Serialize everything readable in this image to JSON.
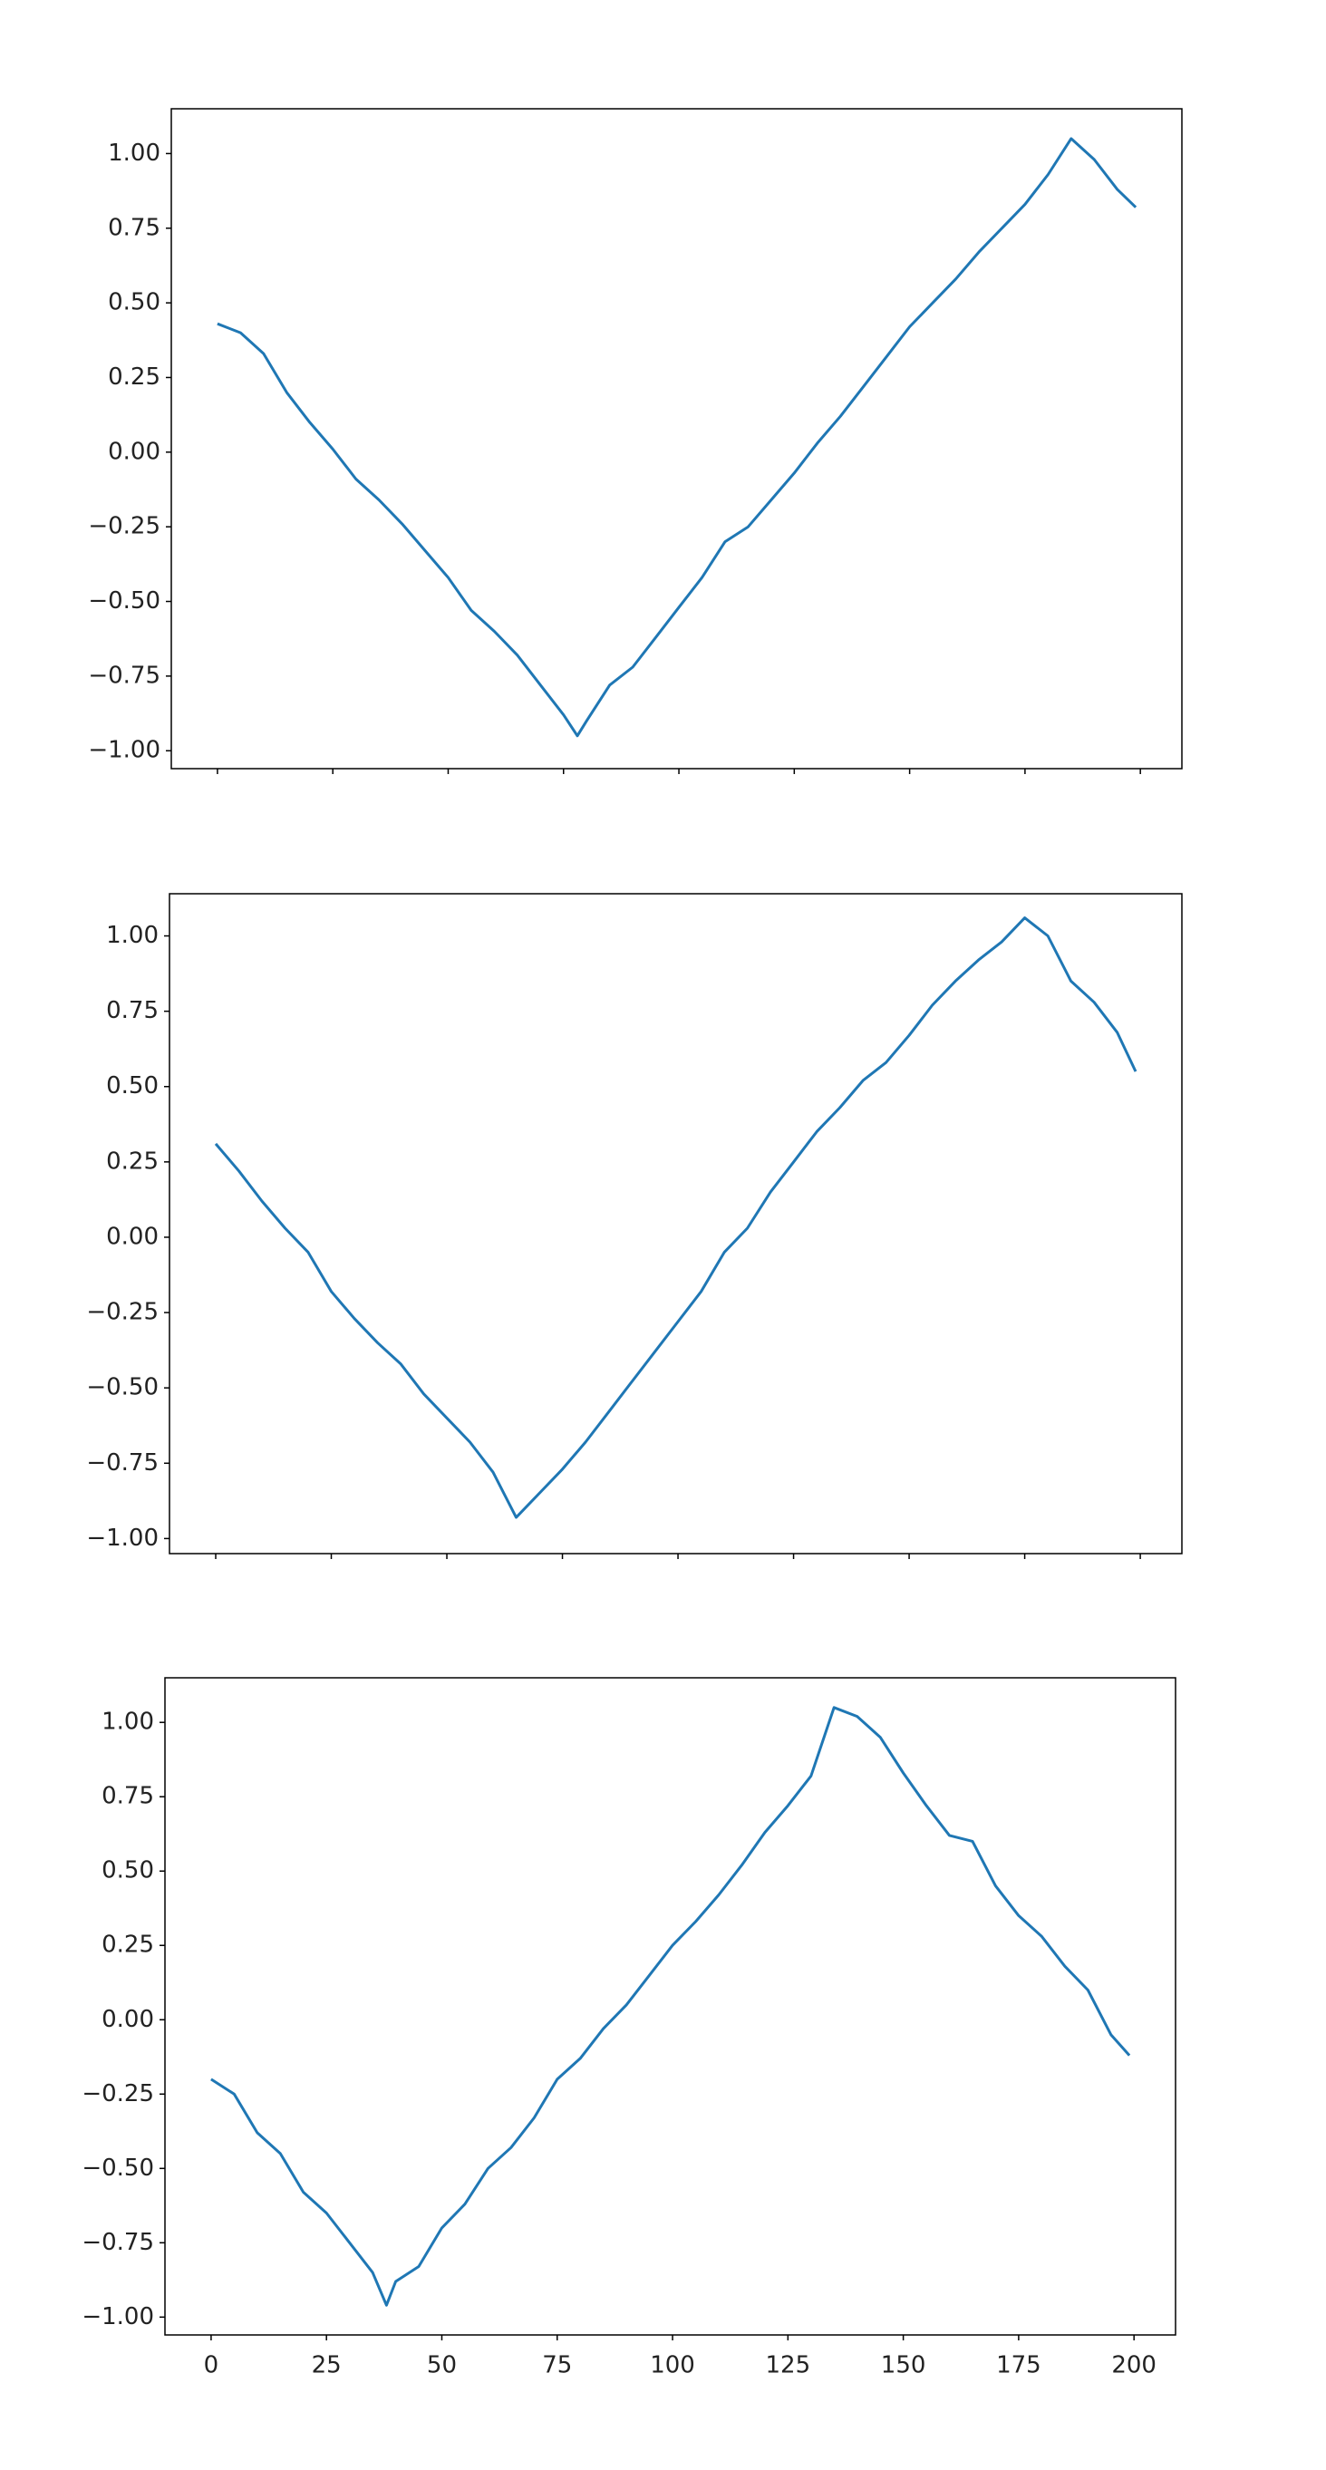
{
  "chart_data": [
    {
      "type": "line",
      "color": "#1f77b4",
      "x": [
        0,
        5,
        10,
        15,
        20,
        25,
        30,
        35,
        40,
        45,
        50,
        55,
        60,
        65,
        70,
        75,
        78,
        80,
        85,
        90,
        95,
        100,
        105,
        110,
        115,
        120,
        125,
        130,
        135,
        140,
        145,
        150,
        155,
        160,
        165,
        170,
        175,
        180,
        185,
        190,
        195,
        199
      ],
      "values": [
        0.43,
        0.4,
        0.33,
        0.2,
        0.1,
        0.01,
        -0.09,
        -0.16,
        -0.24,
        -0.33,
        -0.42,
        -0.53,
        -0.6,
        -0.68,
        -0.78,
        -0.88,
        -0.95,
        -0.9,
        -0.78,
        -0.72,
        -0.62,
        -0.52,
        -0.42,
        -0.3,
        -0.25,
        -0.16,
        -0.07,
        0.03,
        0.12,
        0.22,
        0.32,
        0.42,
        0.5,
        0.58,
        0.67,
        0.75,
        0.83,
        0.93,
        1.05,
        0.98,
        0.88,
        0.82
      ],
      "xlim": [
        -10,
        209
      ],
      "xticks": [
        0,
        25,
        50,
        75,
        100,
        125,
        150,
        175,
        200
      ],
      "xtick_labels_shown": false,
      "ylim": [
        -1.06,
        1.15
      ],
      "yticks": [
        {
          "value": -1,
          "label": "−1.00"
        },
        {
          "value": -0.75,
          "label": "−0.75"
        },
        {
          "value": -0.5,
          "label": "−0.50"
        },
        {
          "value": -0.25,
          "label": "−0.25"
        },
        {
          "value": 0,
          "label": "0.00"
        },
        {
          "value": 0.25,
          "label": "0.25"
        },
        {
          "value": 0.5,
          "label": "0.50"
        },
        {
          "value": 0.75,
          "label": "0.75"
        },
        {
          "value": 1,
          "label": "1.00"
        }
      ]
    },
    {
      "type": "line",
      "color": "#1f77b4",
      "x": [
        0,
        5,
        10,
        15,
        20,
        25,
        30,
        35,
        40,
        45,
        50,
        55,
        60,
        65,
        70,
        75,
        80,
        85,
        90,
        95,
        100,
        105,
        110,
        115,
        120,
        125,
        130,
        135,
        140,
        145,
        150,
        155,
        160,
        165,
        170,
        175,
        180,
        185,
        190,
        195,
        199
      ],
      "values": [
        0.31,
        0.22,
        0.12,
        0.03,
        -0.05,
        -0.18,
        -0.27,
        -0.35,
        -0.42,
        -0.52,
        -0.6,
        -0.68,
        -0.78,
        -0.93,
        -0.85,
        -0.77,
        -0.68,
        -0.58,
        -0.48,
        -0.38,
        -0.28,
        -0.18,
        -0.05,
        0.03,
        0.15,
        0.25,
        0.35,
        0.43,
        0.52,
        0.58,
        0.67,
        0.77,
        0.85,
        0.92,
        0.98,
        1.06,
        1.0,
        0.85,
        0.78,
        0.68,
        0.55
      ],
      "xlim": [
        -10,
        209
      ],
      "xticks": [
        0,
        25,
        50,
        75,
        100,
        125,
        150,
        175,
        200
      ],
      "xtick_labels_shown": false,
      "ylim": [
        -1.05,
        1.14
      ],
      "yticks": [
        {
          "value": -1,
          "label": "−1.00"
        },
        {
          "value": -0.75,
          "label": "−0.75"
        },
        {
          "value": -0.5,
          "label": "−0.50"
        },
        {
          "value": -0.25,
          "label": "−0.25"
        },
        {
          "value": 0,
          "label": "0.00"
        },
        {
          "value": 0.25,
          "label": "0.25"
        },
        {
          "value": 0.5,
          "label": "0.50"
        },
        {
          "value": 0.75,
          "label": "0.75"
        },
        {
          "value": 1,
          "label": "1.00"
        }
      ]
    },
    {
      "type": "line",
      "color": "#1f77b4",
      "x": [
        0,
        5,
        10,
        15,
        20,
        25,
        30,
        35,
        38,
        40,
        45,
        50,
        55,
        60,
        65,
        70,
        75,
        80,
        85,
        90,
        95,
        100,
        105,
        110,
        115,
        120,
        125,
        130,
        135,
        140,
        145,
        150,
        155,
        160,
        165,
        170,
        175,
        180,
        185,
        190,
        195,
        199
      ],
      "values": [
        -0.2,
        -0.25,
        -0.38,
        -0.45,
        -0.58,
        -0.65,
        -0.75,
        -0.85,
        -0.96,
        -0.88,
        -0.83,
        -0.7,
        -0.62,
        -0.5,
        -0.43,
        -0.33,
        -0.2,
        -0.13,
        -0.03,
        0.05,
        0.15,
        0.25,
        0.33,
        0.42,
        0.52,
        0.63,
        0.72,
        0.82,
        1.05,
        1.02,
        0.95,
        0.83,
        0.72,
        0.62,
        0.6,
        0.45,
        0.35,
        0.28,
        0.18,
        0.1,
        -0.05,
        -0.12
      ],
      "xlim": [
        -10,
        209
      ],
      "xticks": [
        0,
        25,
        50,
        75,
        100,
        125,
        150,
        175,
        200
      ],
      "xtick_labels_shown": true,
      "ylim": [
        -1.06,
        1.15
      ],
      "yticks": [
        {
          "value": -1,
          "label": "−1.00"
        },
        {
          "value": -0.75,
          "label": "−0.75"
        },
        {
          "value": -0.5,
          "label": "−0.50"
        },
        {
          "value": -0.25,
          "label": "−0.25"
        },
        {
          "value": 0,
          "label": "0.00"
        },
        {
          "value": 0.25,
          "label": "0.25"
        },
        {
          "value": 0.5,
          "label": "0.50"
        },
        {
          "value": 0.75,
          "label": "0.75"
        },
        {
          "value": 1,
          "label": "1.00"
        }
      ]
    }
  ]
}
